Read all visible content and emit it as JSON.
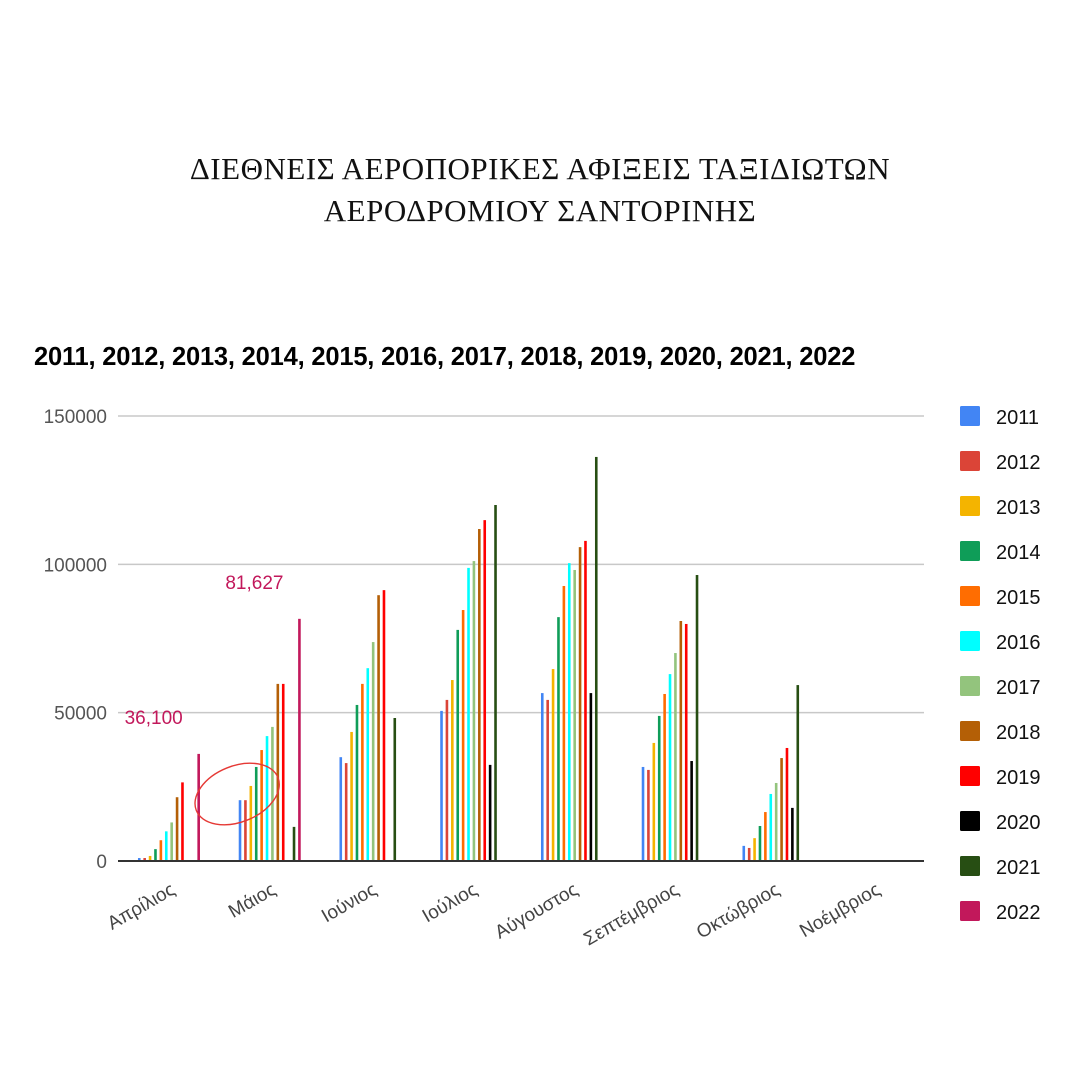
{
  "header": {
    "title_line1": "ΔΙΕΘΝΕΙΣ ΑΕΡΟΠΟΡΙΚΕΣ ΑΦΙΞΕΙΣ ΤΑΞΙΔΙΩΤΩΝ",
    "title_line2": "ΑΕΡΟΔΡΟΜΙΟΥ ΣΑΝΤΟΡΙΝΗΣ"
  },
  "chart_data": {
    "type": "bar",
    "title": "2011, 2012, 2013, 2014, 2015, 2016, 2017, 2018, 2019, 2020, 2021, 2022",
    "xlabel": "",
    "ylabel": "",
    "ylim": [
      0,
      150000
    ],
    "yticks": [
      0,
      50000,
      100000,
      150000
    ],
    "ytick_labels": [
      "0",
      "50000",
      "100000",
      "150000"
    ],
    "grid": true,
    "legend_position": "right",
    "categories": [
      "Απρίλιος",
      "Μάιος",
      "Ιούνιος",
      "Ιούλιος",
      "Αύγουστος",
      "Σεπτέμβριος",
      "Οκτώβριος",
      "Νοέμβριος"
    ],
    "series": [
      {
        "name": "2011",
        "color": "#4285f4",
        "values": [
          1000,
          20500,
          35000,
          50600,
          56600,
          31700,
          5100,
          0
        ]
      },
      {
        "name": "2012",
        "color": "#db4437",
        "values": [
          1000,
          20500,
          33000,
          54300,
          54300,
          30700,
          4400,
          0
        ]
      },
      {
        "name": "2013",
        "color": "#f4b400",
        "values": [
          1700,
          25300,
          43500,
          61000,
          64700,
          39800,
          7700,
          0
        ]
      },
      {
        "name": "2014",
        "color": "#0f9d58",
        "values": [
          4000,
          31700,
          52600,
          77900,
          82200,
          48900,
          11800,
          0
        ]
      },
      {
        "name": "2015",
        "color": "#ff6d01",
        "values": [
          7000,
          37400,
          59700,
          84600,
          92700,
          56300,
          16500,
          0
        ]
      },
      {
        "name": "2016",
        "color": "#00ffff",
        "values": [
          10000,
          42100,
          65000,
          98800,
          100400,
          63000,
          22600,
          0
        ]
      },
      {
        "name": "2017",
        "color": "#93c47d",
        "values": [
          13000,
          45200,
          73800,
          101100,
          98100,
          70100,
          26300,
          0
        ]
      },
      {
        "name": "2018",
        "color": "#b45f06",
        "values": [
          21500,
          59700,
          89600,
          111900,
          105800,
          80900,
          34700,
          0
        ]
      },
      {
        "name": "2019",
        "color": "#ff0000",
        "values": [
          26500,
          59700,
          91300,
          114900,
          107900,
          79900,
          38100,
          0
        ]
      },
      {
        "name": "2020",
        "color": "#000000",
        "values": [
          0,
          0,
          0,
          32400,
          56600,
          33700,
          17900,
          0
        ]
      },
      {
        "name": "2021",
        "color": "#274e13",
        "values": [
          0,
          11500,
          48200,
          120000,
          136200,
          96400,
          59300,
          0
        ]
      },
      {
        "name": "2022",
        "color": "#c2185b",
        "values": [
          36100,
          81627,
          0,
          0,
          0,
          0,
          0,
          0
        ]
      }
    ],
    "annotations": [
      {
        "text": "36,100",
        "series": "2022",
        "category": "Απρίλιος"
      },
      {
        "text": "81,627",
        "series": "2022",
        "category": "Μάιος"
      }
    ],
    "highlight": {
      "shape": "ellipse",
      "color": "#e53935",
      "category": "Μάιος"
    }
  }
}
